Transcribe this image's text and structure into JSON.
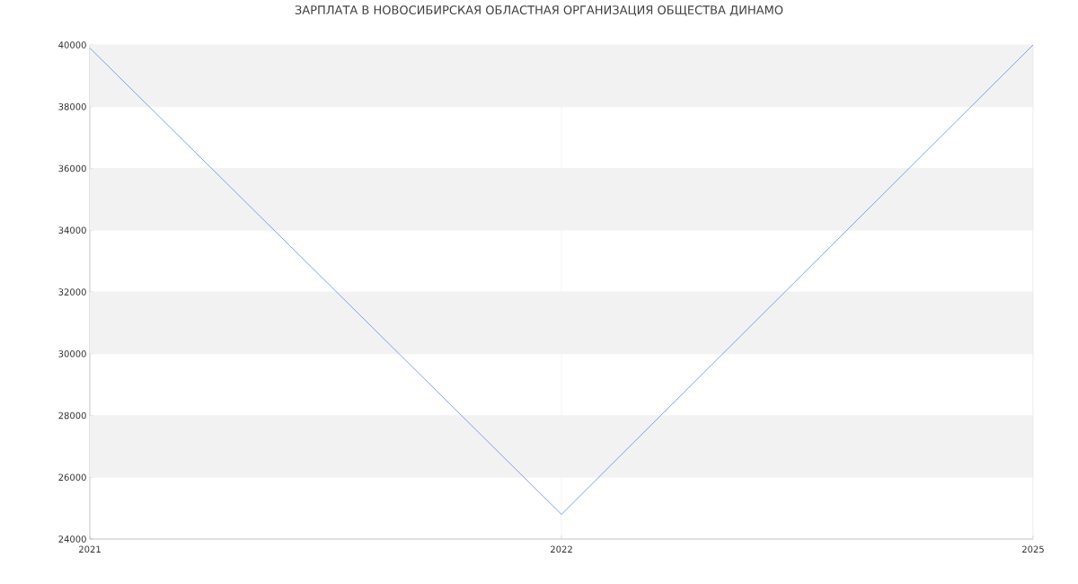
{
  "chart_data": {
    "type": "line",
    "title": "ЗАРПЛАТА В НОВОСИБИРСКАЯ ОБЛАСТНАЯ ОРГАНИЗАЦИЯ ОБЩЕСТВА ДИНАМО",
    "categories": [
      "2021",
      "2022",
      "2025"
    ],
    "series": [
      {
        "color": "#5b8def",
        "values": [
          39900,
          24800,
          40000
        ]
      }
    ],
    "ylim": [
      24000,
      40000
    ],
    "yticks": [
      24000,
      26000,
      28000,
      30000,
      32000,
      34000,
      36000,
      38000,
      40000
    ],
    "grid": true,
    "marker": "none",
    "line_style": "solid"
  }
}
